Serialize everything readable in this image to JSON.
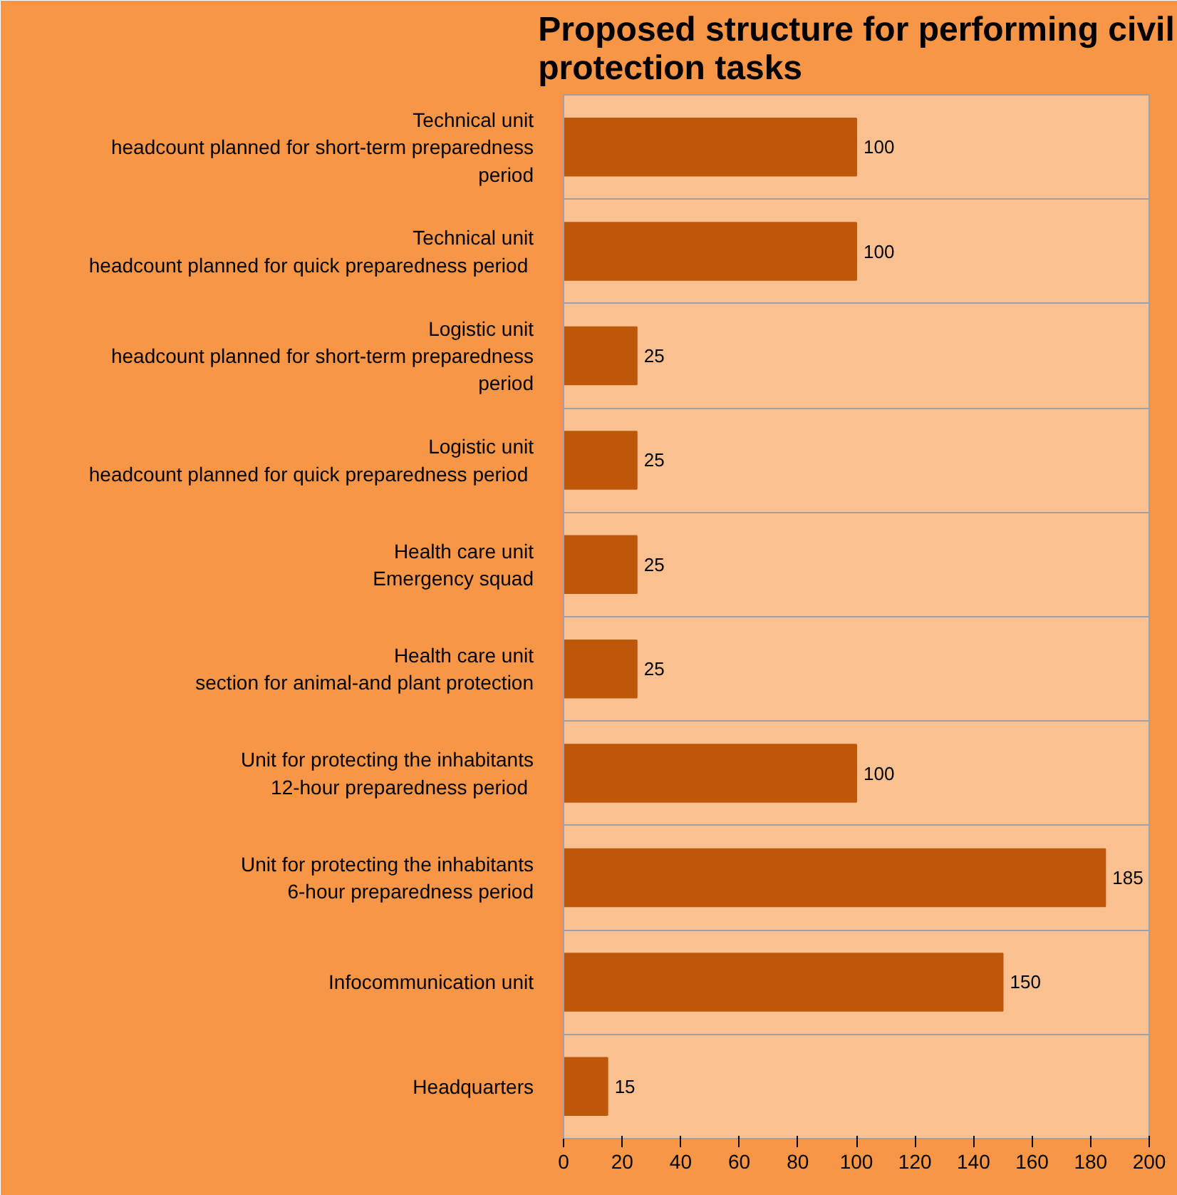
{
  "chart_data": {
    "type": "bar",
    "orientation": "horizontal",
    "title": "Proposed structure for performing civil protection tasks",
    "categories": [
      "Technical unit\nheadcount planned for short-term preparedness period",
      "Technical unit\nheadcount planned for quick preparedness  period",
      "Logistic unit\nheadcount planned for short-term preparedness period",
      "Logistic unit\nheadcount planned for quick preparedness  period",
      "Health care unit\nEmergency squad",
      "Health care unit\nsection for animal-and plant protection",
      "Unit for protecting the inhabitants\n12-hour preparedness  period",
      "Unit for protecting the inhabitants\n6-hour preparedness period",
      "Infocommunication unit",
      "Headquarters"
    ],
    "values": [
      100,
      100,
      25,
      25,
      25,
      25,
      100,
      185,
      150,
      15
    ],
    "color": "#bd580a",
    "data_labels": true,
    "xlim": [
      0,
      200
    ],
    "xticks": [
      0,
      20,
      40,
      60,
      80,
      100,
      120,
      140,
      160,
      180,
      200
    ],
    "grid": "y"
  }
}
